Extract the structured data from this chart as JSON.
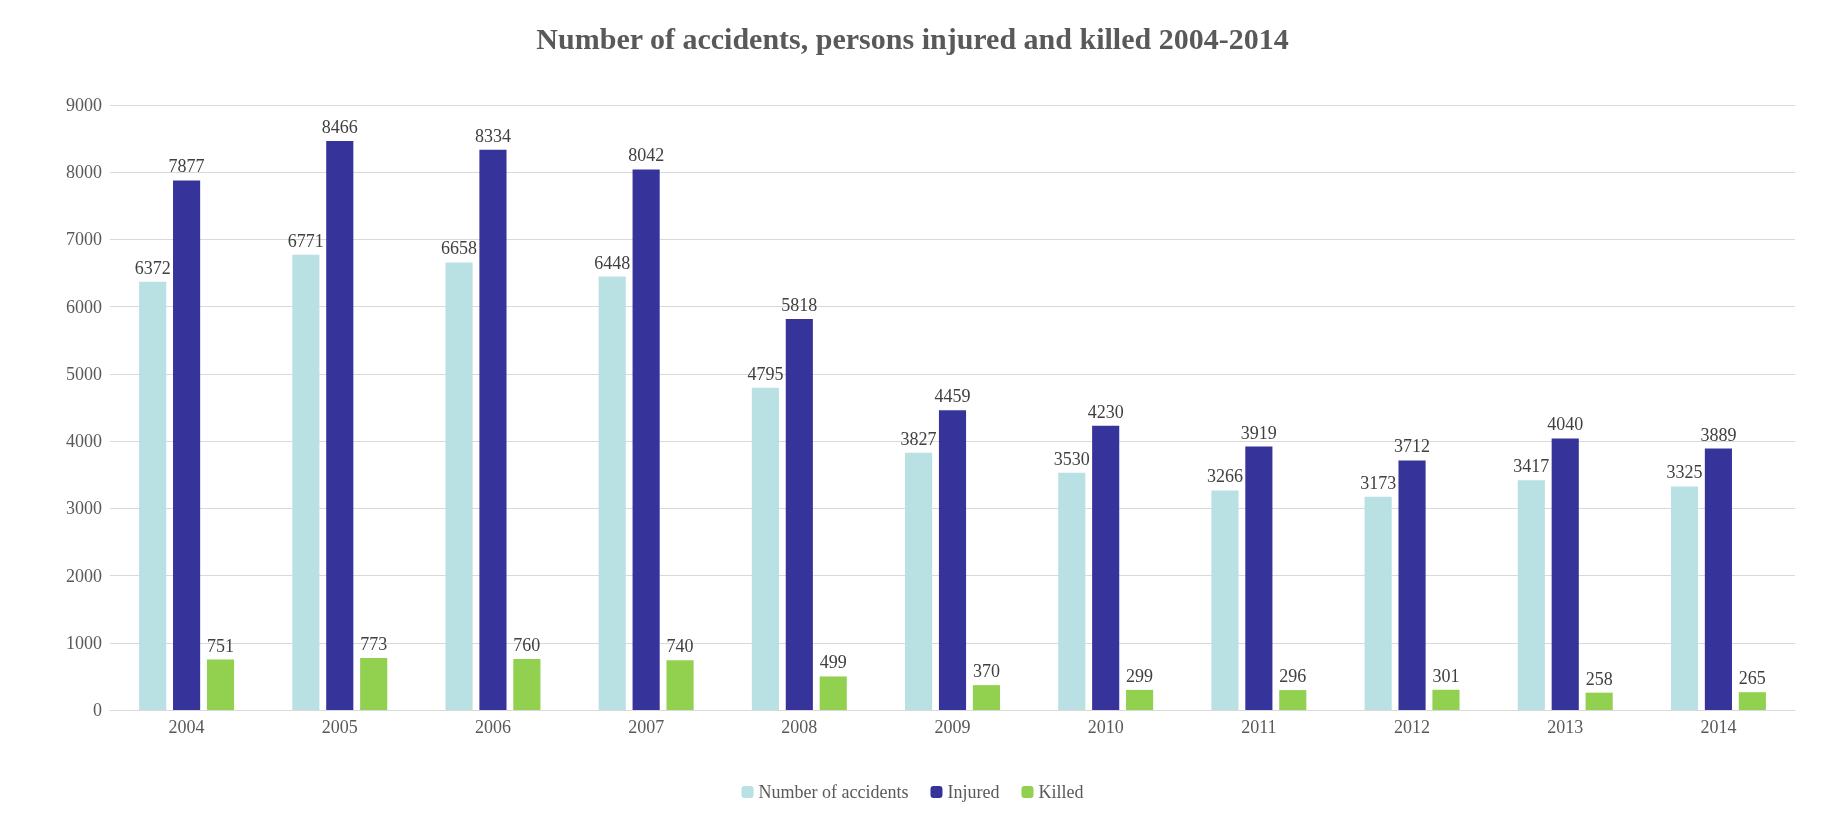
{
  "chart_data": {
    "type": "bar",
    "title": "Number of accidents, persons injured and killed 2004-2014",
    "categories": [
      "2004",
      "2005",
      "2006",
      "2007",
      "2008",
      "2009",
      "2010",
      "2011",
      "2012",
      "2013",
      "2014"
    ],
    "series": [
      {
        "name": "Number of accidents",
        "color": "#b9e0e3",
        "values": [
          6372,
          6771,
          6658,
          6448,
          4795,
          3827,
          3530,
          3266,
          3173,
          3417,
          3325
        ]
      },
      {
        "name": "Injured",
        "color": "#36349a",
        "values": [
          7877,
          8466,
          8334,
          8042,
          5818,
          4459,
          4230,
          3919,
          3712,
          4040,
          3889
        ]
      },
      {
        "name": "Killed",
        "color": "#92d050",
        "values": [
          751,
          773,
          760,
          740,
          499,
          370,
          299,
          296,
          301,
          258,
          265
        ]
      }
    ],
    "ylim": [
      0,
      9000
    ],
    "yticks": [
      0,
      1000,
      2000,
      3000,
      4000,
      5000,
      6000,
      7000,
      8000,
      9000
    ],
    "grid": "y",
    "legend": "bottom",
    "data_labels": true
  }
}
